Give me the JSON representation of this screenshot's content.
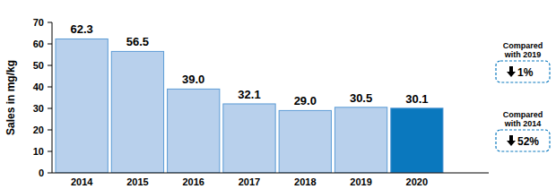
{
  "chart_data": {
    "type": "bar",
    "y_label": "Sales in mg/kg",
    "categories": [
      "2014",
      "2015",
      "2016",
      "2017",
      "2018",
      "2019",
      "2020"
    ],
    "values": [
      62.3,
      56.5,
      39.0,
      32.1,
      29.0,
      30.5,
      30.1
    ],
    "value_labels": [
      "62.3",
      "56.5",
      "39.0",
      "32.1",
      "29.0",
      "30.5",
      "30.1"
    ],
    "colors": [
      "#b8d0ec",
      "#b8d0ec",
      "#b8d0ec",
      "#b8d0ec",
      "#b8d0ec",
      "#b8d0ec",
      "#0a78be"
    ],
    "ylim": [
      0,
      70
    ],
    "yticks": [
      0,
      10,
      20,
      30,
      40,
      50,
      60,
      70
    ],
    "data_labels": true,
    "grid": false,
    "annotations": [
      {
        "title": "Compared with 2019",
        "text": "1%"
      },
      {
        "title": "Compared with 2014",
        "text": "52%"
      }
    ]
  }
}
